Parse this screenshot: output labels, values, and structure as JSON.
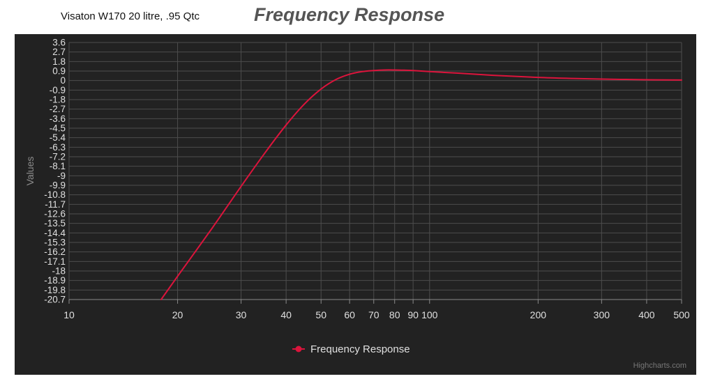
{
  "page": {
    "subtitle": "Visaton W170 20 litre, .95 Qtc",
    "title": "Frequency Response"
  },
  "chart_data": {
    "type": "line",
    "title": "Frequency Response",
    "xlabel": "",
    "ylabel": "Values",
    "x_scale": "log",
    "xlim": [
      10,
      500
    ],
    "ylim": [
      -20.7,
      3.6
    ],
    "x_ticks": [
      10,
      20,
      30,
      40,
      50,
      60,
      70,
      80,
      90,
      100,
      200,
      300,
      400,
      500
    ],
    "x_tick_labels": [
      "10",
      "20",
      "30",
      "40",
      "50",
      "60",
      "70",
      "80",
      "90",
      "100",
      "200",
      "300",
      "400",
      "500"
    ],
    "y_ticks": [
      3.6,
      2.7,
      1.8,
      0.9,
      0,
      -0.9,
      -1.8,
      -2.7,
      -3.6,
      -4.5,
      -5.4,
      -6.3,
      -7.2,
      -8.1,
      -9,
      -9.9,
      -10.8,
      -11.7,
      -12.6,
      -13.5,
      -14.4,
      -15.3,
      -16.2,
      -17.1,
      -18,
      -18.9,
      -19.8,
      -20.7
    ],
    "grid": true,
    "legend_position": "bottom-center",
    "series": [
      {
        "name": "Frequency Response",
        "color": "#dc143c",
        "x": [
          18,
          20,
          25,
          30,
          35,
          40,
          45,
          50,
          55,
          60,
          65,
          70,
          75,
          80,
          85,
          90,
          100,
          120,
          150,
          200,
          250,
          300,
          400,
          500
        ],
        "y": [
          -20.7,
          -18.5,
          -13.9,
          -10.0,
          -6.8,
          -4.2,
          -2.2,
          -0.8,
          0.1,
          0.6,
          0.85,
          0.95,
          1.0,
          1.0,
          0.98,
          0.95,
          0.85,
          0.7,
          0.5,
          0.3,
          0.2,
          0.14,
          0.08,
          0.05
        ]
      }
    ]
  },
  "credits": "Highcharts.com"
}
